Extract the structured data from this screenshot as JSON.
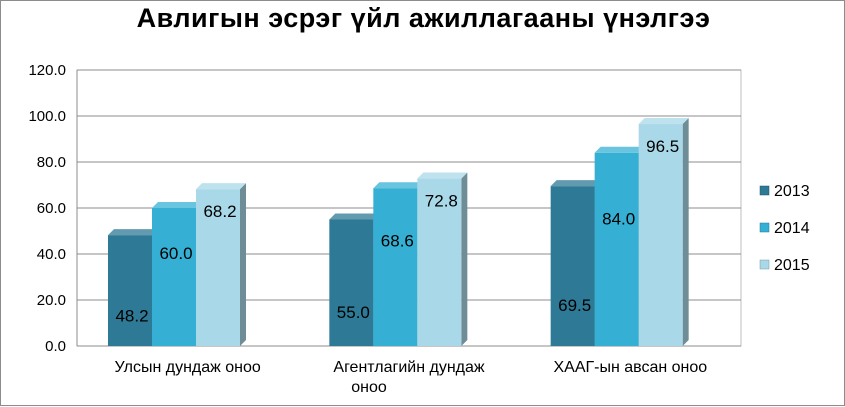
{
  "chart_data": {
    "type": "bar",
    "title": "Авлигын эсрэг үйл ажиллагааны үнэлгээ",
    "categories": [
      "Улсын дундаж оноо",
      "Агентлагийн дундаж оноо",
      "ХААГ-ын авсан оноо"
    ],
    "series": [
      {
        "name": "2013",
        "values": [
          48.2,
          55.0,
          69.5
        ],
        "color": "#2e7a96"
      },
      {
        "name": "2014",
        "values": [
          60.0,
          68.6,
          84.0
        ],
        "color": "#35b0d4"
      },
      {
        "name": "2015",
        "values": [
          68.2,
          72.8,
          96.5
        ],
        "color": "#a9d9e8"
      }
    ],
    "ylim": [
      0,
      120
    ],
    "yticks": [
      "0.0",
      "20.0",
      "40.0",
      "60.0",
      "80.0",
      "100.0",
      "120.0"
    ],
    "grid": true,
    "legend_position": "right",
    "style": "3d-bar"
  }
}
